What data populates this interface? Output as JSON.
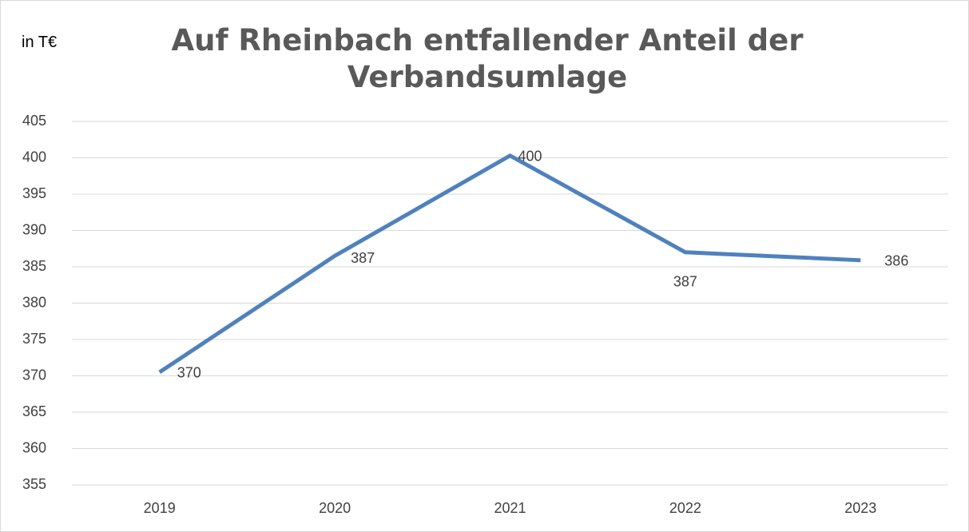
{
  "chart_data": {
    "type": "line",
    "title": "Auf Rheinbach entfallender Anteil der Verbandsumlage",
    "y_label": "in T€",
    "categories": [
      "2019",
      "2020",
      "2021",
      "2022",
      "2023"
    ],
    "series": [
      {
        "name": "Verbandsumlage",
        "color": "#4f81bd",
        "values": [
          370.5,
          386.5,
          400.3,
          387.0,
          385.9
        ],
        "value_labels": [
          "370",
          "387",
          "400",
          "387",
          "386"
        ]
      }
    ],
    "ylim": [
      355,
      405
    ],
    "yticks": [
      355,
      360,
      365,
      370,
      375,
      380,
      385,
      390,
      395,
      400,
      405
    ],
    "grid": true
  }
}
